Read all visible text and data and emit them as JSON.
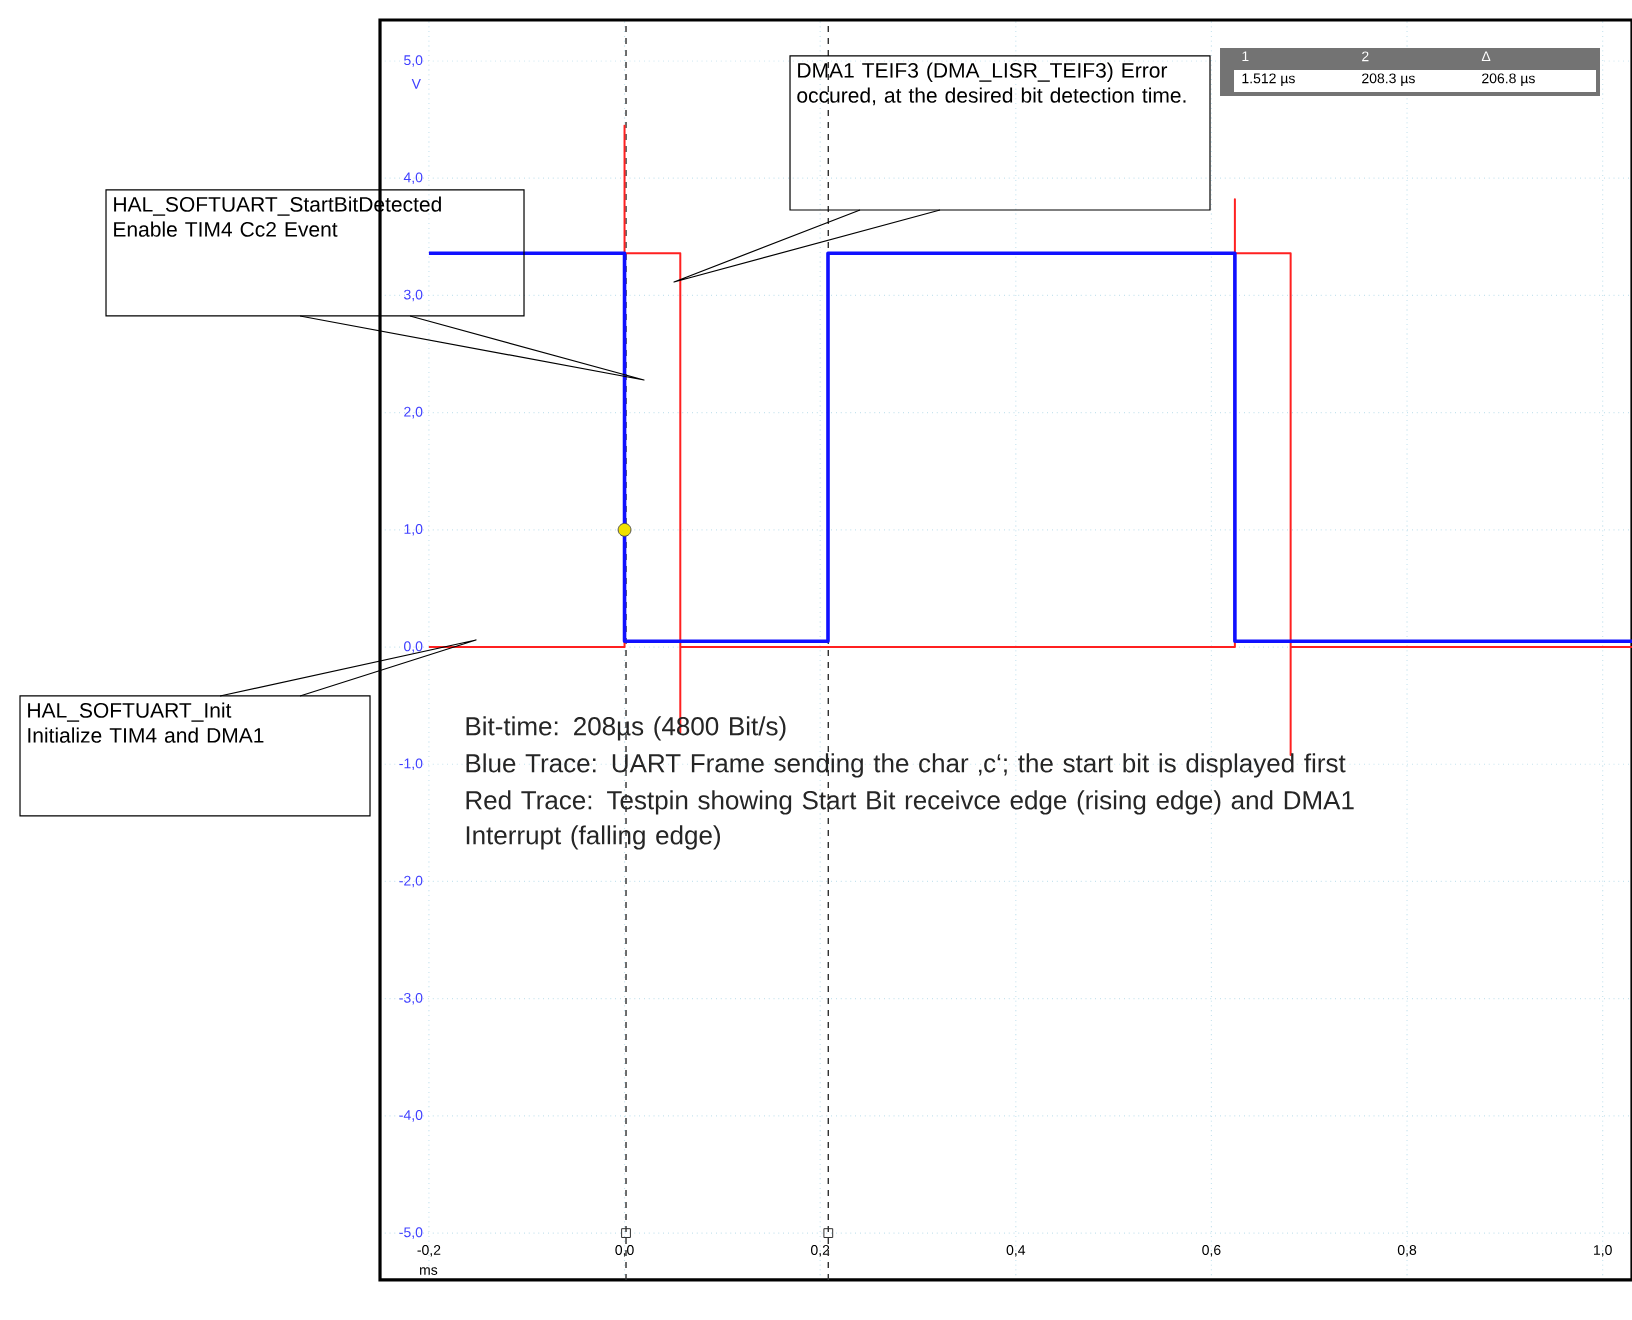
{
  "chart_data": {
    "type": "line",
    "xlabel": "ms",
    "ylabel": "V",
    "xlim": [
      -0.25,
      1.03
    ],
    "ylim": [
      -5.4,
      5.35
    ],
    "xticks": [
      {
        "value": -0.2,
        "label": "-0,2"
      },
      {
        "value": 0.0,
        "label": "0,0"
      },
      {
        "value": 0.2,
        "label": "0,2"
      },
      {
        "value": 0.4,
        "label": "0,4"
      },
      {
        "value": 0.6,
        "label": "0,6"
      },
      {
        "value": 0.8,
        "label": "0,8"
      },
      {
        "value": 1.0,
        "label": "1,0"
      }
    ],
    "yticks": [
      {
        "value": 5,
        "label": "5,0"
      },
      {
        "value": 4,
        "label": "4,0"
      },
      {
        "value": 3,
        "label": "3,0"
      },
      {
        "value": 2,
        "label": "2,0"
      },
      {
        "value": 1,
        "label": "1,0"
      },
      {
        "value": 0,
        "label": "0,0"
      },
      {
        "value": -1,
        "label": "-1,0"
      },
      {
        "value": -2,
        "label": "-2,0"
      },
      {
        "value": -3,
        "label": "-3,0"
      },
      {
        "value": -4,
        "label": "-4,0"
      },
      {
        "value": -5,
        "label": "-5,0"
      }
    ],
    "grid": true,
    "series": [
      {
        "color": "#ff2020",
        "x": [
          -0.2,
          0.0,
          0.0,
          0.0,
          0.057,
          0.057,
          0.057,
          0.624,
          0.624,
          0.624,
          0.681,
          0.681,
          0.681,
          1.03
        ],
        "values": [
          0.0,
          0.0,
          4.45,
          3.36,
          3.36,
          -0.73,
          0.0,
          0.0,
          3.82,
          3.36,
          3.36,
          -0.92,
          0.0,
          0.0
        ]
      },
      {
        "color": "#1010ff",
        "x": [
          -0.2,
          0.0,
          0.0,
          0.208,
          0.208,
          0.624,
          0.624,
          1.03
        ],
        "values": [
          3.36,
          3.36,
          0.05,
          0.05,
          3.36,
          3.36,
          0.05,
          0.05
        ]
      },
      {
        "type": "scatter",
        "color": "#f0e000",
        "x": [
          0.0
        ],
        "values": [
          1.0
        ]
      }
    ],
    "ref_lines": [
      {
        "axis": "x",
        "value": 0.0015,
        "color": "#303030",
        "line_style": "dashed"
      },
      {
        "axis": "x",
        "value": 0.2083,
        "color": "#303030",
        "line_style": "dashed"
      }
    ],
    "annotations": [
      "HAL_SOFTUART_StartBitDetected Enable TIM4 Cc2 Event",
      "DMA1 TEIF3 (DMA_LISR_TEIF3) Error occured, at the desired bit detection time.",
      "HAL_SOFTUART_Init Initialize TIM4 and DMA1",
      "Bit-time: 208µs (4800 Bit/s)",
      "Blue Trace: UART Frame sending the char ‚c‘; the start bit is displayed first",
      "Red Trace: Testpin showing Start Bit receivce edge (rising edge) and DMA1 Interrupt (falling edge)",
      "1",
      "2",
      "Δ",
      "1.512 µs",
      "208.3 µs",
      "206.8 µs"
    ]
  }
}
